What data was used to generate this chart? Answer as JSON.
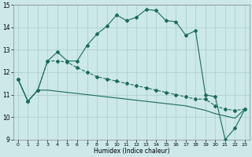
{
  "xlabel": "Humidex (Indice chaleur)",
  "bg_color": "#cce8e8",
  "line_color": "#1a6b5a",
  "grid_color": "#aacccc",
  "xlim": [
    -0.5,
    23.5
  ],
  "ylim": [
    9,
    15
  ],
  "xticks": [
    0,
    1,
    2,
    3,
    4,
    5,
    6,
    7,
    8,
    9,
    10,
    11,
    12,
    13,
    14,
    15,
    16,
    17,
    18,
    19,
    20,
    21,
    22,
    23
  ],
  "yticks": [
    9,
    10,
    11,
    12,
    13,
    14,
    15
  ],
  "line1_x": [
    0,
    1,
    2,
    3,
    4,
    5,
    6,
    7,
    8,
    9,
    10,
    11,
    12,
    13,
    14,
    15,
    16,
    17,
    18,
    19,
    20,
    21,
    22,
    23
  ],
  "line1_y": [
    11.7,
    10.7,
    11.2,
    12.5,
    12.9,
    12.5,
    12.5,
    13.2,
    13.7,
    14.05,
    14.55,
    14.3,
    14.45,
    14.8,
    14.75,
    14.3,
    14.25,
    13.65,
    13.85,
    11.0,
    10.9,
    9.0,
    9.5,
    10.35
  ],
  "line2_x": [
    0,
    1,
    2,
    3,
    4,
    5,
    6,
    7,
    8,
    9,
    10,
    11,
    12,
    13,
    14,
    15,
    16,
    17,
    18,
    19,
    20,
    21,
    22,
    23
  ],
  "line2_y": [
    11.7,
    10.7,
    11.2,
    12.5,
    12.5,
    12.45,
    12.2,
    12.0,
    11.8,
    11.7,
    11.6,
    11.5,
    11.4,
    11.3,
    11.2,
    11.1,
    11.0,
    10.9,
    10.8,
    10.8,
    10.5,
    10.35,
    10.3,
    10.35
  ],
  "line3_x": [
    0,
    1,
    2,
    3,
    4,
    5,
    6,
    7,
    8,
    9,
    10,
    11,
    12,
    13,
    14,
    15,
    16,
    17,
    18,
    19,
    20,
    21,
    22,
    23
  ],
  "line3_y": [
    11.7,
    10.7,
    11.2,
    11.2,
    11.15,
    11.1,
    11.05,
    11.0,
    10.95,
    10.9,
    10.85,
    10.8,
    10.75,
    10.7,
    10.65,
    10.6,
    10.55,
    10.5,
    10.4,
    10.3,
    10.15,
    10.05,
    9.95,
    10.35
  ],
  "markersize": 2.0,
  "linewidth": 0.8
}
